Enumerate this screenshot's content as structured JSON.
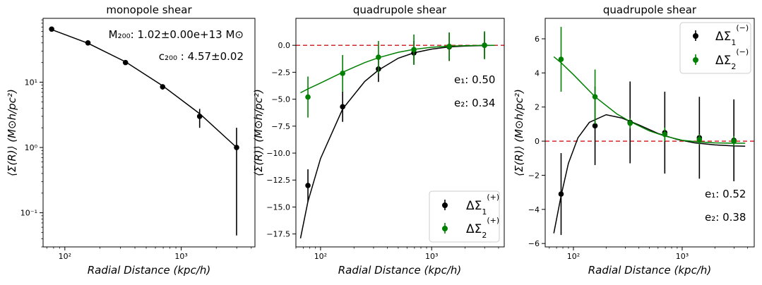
{
  "chart_data": [
    {
      "type": "scatter",
      "title": "monopole shear",
      "xlabel": "Radial Distance (kpc/h)",
      "ylabel": "⟨Σ(R)⟩ (M⊙h/pc²)",
      "xscale": "log",
      "yscale": "log",
      "xlim": [
        65,
        4300
      ],
      "ylim": [
        0.03,
        95
      ],
      "xticks": [
        {
          "v": 100,
          "label": "10²"
        },
        {
          "v": 1000,
          "label": "10³"
        }
      ],
      "yticks": [
        {
          "v": 0.1,
          "label": "10⁻¹"
        },
        {
          "v": 1,
          "label": "10⁰"
        },
        {
          "v": 10,
          "label": "10¹"
        }
      ],
      "series": [
        {
          "color": "#000000",
          "x": [
            77,
            158,
            332,
            692,
            1440,
            2990
          ],
          "y": [
            65,
            40,
            20,
            8.5,
            3.0,
            1.0
          ],
          "err_low": [
            0,
            0,
            0,
            0.8,
            1.0,
            0.955
          ],
          "err_high": [
            0,
            0,
            0,
            0.8,
            0.9,
            1.0
          ]
        }
      ],
      "model": {
        "color": "#000000",
        "x": [
          77,
          158,
          332,
          692,
          1440,
          2990
        ],
        "y": [
          64,
          39.5,
          20.5,
          8.8,
          3.3,
          1.0
        ]
      },
      "annotations": [
        {
          "text": "M₂₀₀: 1.02±0.00e+13 M⊙"
        },
        {
          "text": "c₂₀₀ : 4.57±0.02"
        }
      ],
      "grid": false
    },
    {
      "type": "scatter",
      "title": "quadrupole shear",
      "xlabel": "Radial Distance (kpc/h)",
      "ylabel": "⟨Σ(R)⟩ (M⊙h/pc²)",
      "xscale": "log",
      "yscale": "linear",
      "xlim": [
        60,
        4500
      ],
      "ylim": [
        -18.7,
        2.5
      ],
      "xticks": [
        {
          "v": 100,
          "label": "10²"
        },
        {
          "v": 1000,
          "label": "10³"
        }
      ],
      "yticks": [
        {
          "v": 0,
          "label": "0.0"
        },
        {
          "v": -2.5,
          "label": "−2.5"
        },
        {
          "v": -5,
          "label": "−5.0"
        },
        {
          "v": -7.5,
          "label": "−7.5"
        },
        {
          "v": -10,
          "label": "−10.0"
        },
        {
          "v": -12.5,
          "label": "−12.5"
        },
        {
          "v": -15,
          "label": "−15.0"
        },
        {
          "v": -17.5,
          "label": "−17.5"
        }
      ],
      "series": [
        {
          "name": "ΔΣ1(+)",
          "color": "#000000",
          "x": [
            77,
            158,
            332,
            692,
            1440,
            2990
          ],
          "y": [
            -13.0,
            -5.7,
            -2.2,
            -0.7,
            -0.15,
            0.0
          ],
          "err": [
            1.5,
            1.4,
            1.2,
            1.1,
            1.3,
            1.2
          ]
        },
        {
          "name": "ΔΣ2(+)",
          "color": "#008000",
          "x": [
            77,
            158,
            332,
            692,
            1440,
            2990
          ],
          "y": [
            -4.8,
            -2.6,
            -1.1,
            -0.4,
            -0.1,
            0.0
          ],
          "err": [
            1.9,
            1.7,
            1.5,
            1.4,
            1.3,
            1.3
          ]
        }
      ],
      "models": [
        {
          "color": "#000000",
          "x": [
            66,
            77,
            100,
            158,
            250,
            332,
            500,
            692,
            1000,
            1440,
            2000,
            2990,
            3700
          ],
          "y": [
            -17.9,
            -14.5,
            -10.5,
            -5.9,
            -3.35,
            -2.3,
            -1.2,
            -0.7,
            -0.35,
            -0.15,
            -0.07,
            -0.02,
            0.0
          ]
        },
        {
          "color": "#008000",
          "x": [
            66,
            77,
            100,
            158,
            250,
            332,
            500,
            692,
            1000,
            1440,
            2000,
            2990,
            3700
          ],
          "y": [
            -4.4,
            -4.05,
            -3.5,
            -2.5,
            -1.6,
            -1.15,
            -0.65,
            -0.38,
            -0.18,
            -0.08,
            -0.03,
            0.0,
            0.0
          ]
        }
      ],
      "hline": {
        "y": 0,
        "color": "#d62728",
        "style": "dashed"
      },
      "annotations": [
        {
          "text": "e₁: 0.50"
        },
        {
          "text": "e₂: 0.34"
        }
      ],
      "legend": "bottom-right",
      "grid": false
    },
    {
      "type": "scatter",
      "title": "quadrupole shear",
      "xlabel": "Radial Distance (kpc/h)",
      "ylabel": "⟨Σ(R)⟩ (M⊙h/pc²)",
      "xscale": "log",
      "yscale": "linear",
      "xlim": [
        55,
        4600
      ],
      "ylim": [
        -6.2,
        7.2
      ],
      "xticks": [
        {
          "v": 100,
          "label": "10²"
        },
        {
          "v": 1000,
          "label": "10³"
        }
      ],
      "yticks": [
        {
          "v": 6,
          "label": "6"
        },
        {
          "v": 4,
          "label": "4"
        },
        {
          "v": 2,
          "label": "2"
        },
        {
          "v": 0,
          "label": "0"
        },
        {
          "v": -2,
          "label": "−2"
        },
        {
          "v": -4,
          "label": "−4"
        },
        {
          "v": -6,
          "label": "−6"
        }
      ],
      "series": [
        {
          "name": "ΔΣ1(−)",
          "color": "#000000",
          "x": [
            77,
            158,
            332,
            692,
            1440,
            2990
          ],
          "y": [
            -3.1,
            0.9,
            1.1,
            0.5,
            0.2,
            0.05
          ],
          "err": [
            2.4,
            2.3,
            2.4,
            2.4,
            2.4,
            2.4
          ]
        },
        {
          "name": "ΔΣ2(−)",
          "color": "#008000",
          "x": [
            77,
            158,
            332,
            692,
            1440,
            2990
          ],
          "y": [
            4.8,
            2.6,
            1.05,
            0.4,
            0.1,
            0.0
          ],
          "err": [
            1.9,
            1.6,
            0.3,
            0.4,
            0.3,
            0.3
          ]
        }
      ],
      "models": [
        {
          "color": "#000000",
          "x": [
            66,
            77,
            90,
            110,
            140,
            200,
            280,
            400,
            600,
            900,
            1300,
            2000,
            3000,
            3800
          ],
          "y": [
            -5.4,
            -3.2,
            -1.3,
            0.2,
            1.1,
            1.55,
            1.35,
            0.95,
            0.45,
            0.1,
            -0.1,
            -0.22,
            -0.28,
            -0.3
          ]
        },
        {
          "color": "#008000",
          "x": [
            66,
            77,
            100,
            158,
            250,
            332,
            500,
            692,
            1000,
            1440,
            2000,
            2990,
            3800
          ],
          "y": [
            4.95,
            4.6,
            3.9,
            2.6,
            1.6,
            1.15,
            0.6,
            0.3,
            0.05,
            -0.05,
            -0.1,
            -0.12,
            -0.12
          ]
        }
      ],
      "hline": {
        "y": 0,
        "color": "#d62728",
        "style": "dashed"
      },
      "annotations": [
        {
          "text": "e₁: 0.52"
        },
        {
          "text": "e₂: 0.38"
        }
      ],
      "legend": "top-right",
      "grid": false
    }
  ]
}
